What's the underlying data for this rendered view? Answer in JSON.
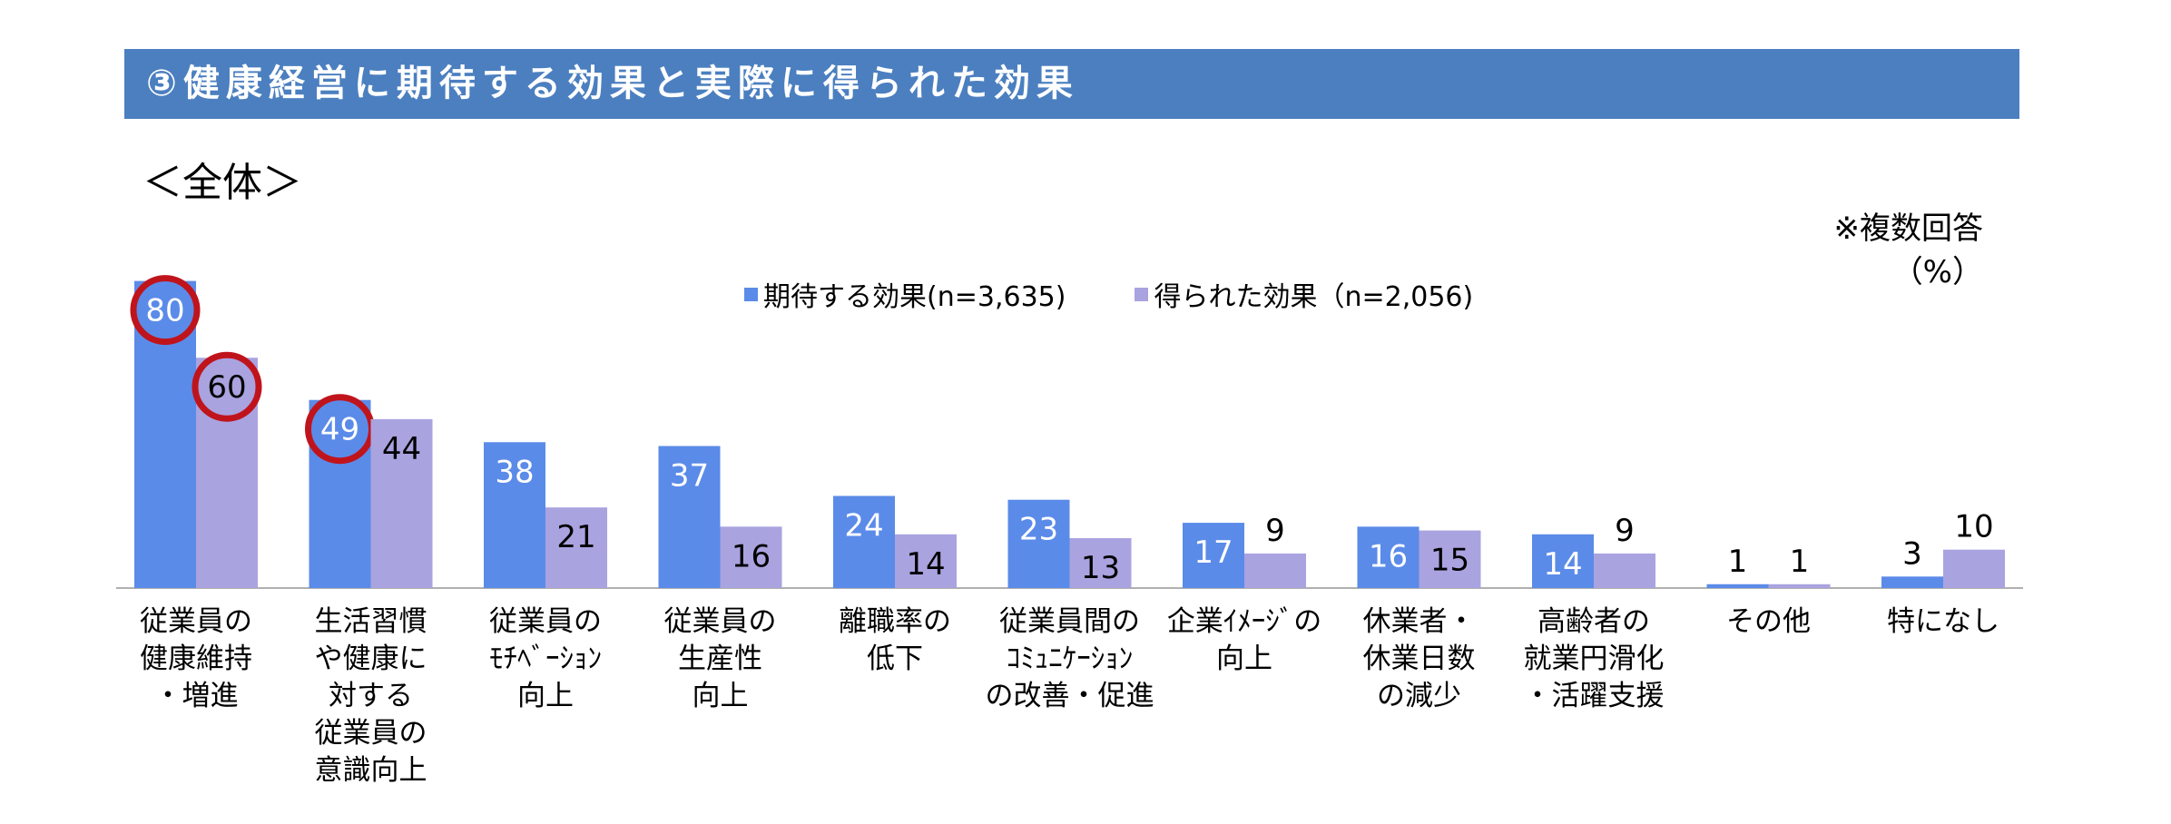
{
  "header": {
    "title": "③健康経営に期待する効果と実際に得られた効果"
  },
  "section_label": "＜全体＞",
  "note": {
    "line1": "※複数回答",
    "line2": "（%）"
  },
  "colors": {
    "header_bg": "#4b7fc0",
    "expected": "#5b8be8",
    "obtained": "#a9a3e0",
    "highlight_circle": "#c0141c",
    "axis": "#b0b0b0"
  },
  "chart_data": {
    "type": "bar",
    "categories": [
      [
        "従業員の",
        "健康維持",
        "・増進"
      ],
      [
        "生活習慣",
        "や健康に",
        "対する",
        "従業員の",
        "意識向上"
      ],
      [
        "従業員の",
        "ﾓﾁﾍﾞｰｼｮﾝ",
        "向上"
      ],
      [
        "従業員の",
        "生産性",
        "向上"
      ],
      [
        "離職率の",
        "低下"
      ],
      [
        "従業員間の",
        "ｺﾐｭﾆｹｰｼｮﾝ",
        "の改善・促進"
      ],
      [
        "企業ｲﾒｰｼﾞの",
        "向上"
      ],
      [
        "休業者・",
        "休業日数",
        "の減少"
      ],
      [
        "高齢者の",
        "就業円滑化",
        "・活躍支援"
      ],
      [
        "その他"
      ],
      [
        "特になし"
      ]
    ],
    "series": [
      {
        "name": "期待する効果(n=3,635)",
        "color": "#5b8be8",
        "values": [
          80,
          49,
          38,
          37,
          24,
          23,
          17,
          16,
          14,
          1,
          3
        ]
      },
      {
        "name": "得られた効果（n=2,056)",
        "color": "#a9a3e0",
        "values": [
          60,
          44,
          21,
          16,
          14,
          13,
          9,
          15,
          9,
          1,
          10
        ]
      }
    ],
    "highlighted": [
      {
        "series": 0,
        "category": 0
      },
      {
        "series": 1,
        "category": 0
      },
      {
        "series": 0,
        "category": 1
      }
    ],
    "ylim": [
      0,
      80
    ],
    "grid": false,
    "legend_position": "top-center"
  }
}
